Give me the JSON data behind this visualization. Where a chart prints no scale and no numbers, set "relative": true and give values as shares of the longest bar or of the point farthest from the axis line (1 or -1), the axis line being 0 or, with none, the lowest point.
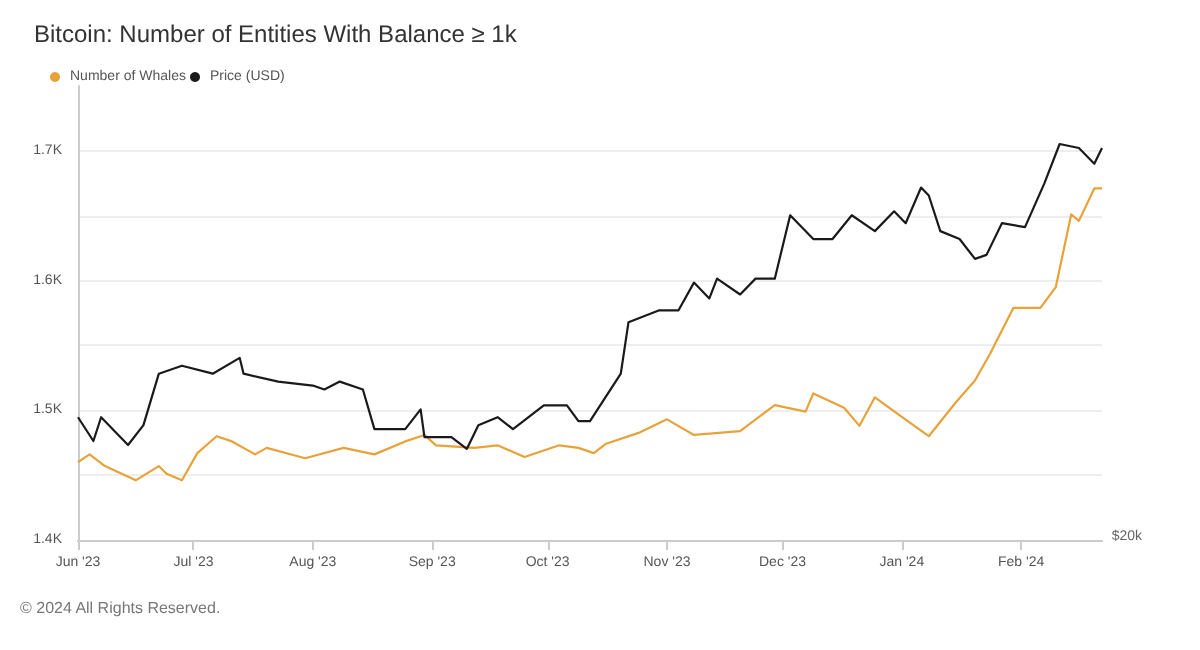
{
  "chart_data": [
    {
      "type": "line",
      "title": "Bitcoin: Number of Entities With Balance ≥ 1k",
      "annotations": [
        "© 2024 All Rights Reserved."
      ],
      "x": [
        "2023-06-01",
        "2023-06-04",
        "2023-06-08",
        "2023-06-16",
        "2023-06-22",
        "2023-06-24",
        "2023-06-28",
        "2023-07-02",
        "2023-07-07",
        "2023-07-11",
        "2023-07-17",
        "2023-07-20",
        "2023-07-30",
        "2023-08-09",
        "2023-08-17",
        "2023-08-25",
        "2023-08-30",
        "2023-09-02",
        "2023-09-12",
        "2023-09-18",
        "2023-09-25",
        "2023-10-04",
        "2023-10-09",
        "2023-10-13",
        "2023-10-16",
        "2023-10-25",
        "2023-11-01",
        "2023-11-08",
        "2023-11-20",
        "2023-11-29",
        "2023-12-07",
        "2023-12-09",
        "2023-12-17",
        "2023-12-21",
        "2023-12-25",
        "2024-01-01",
        "2024-01-08",
        "2024-01-15",
        "2024-01-20",
        "2024-01-24",
        "2024-01-30",
        "2024-02-06",
        "2024-02-10",
        "2024-02-14",
        "2024-02-16",
        "2024-02-20",
        "2024-02-22"
      ],
      "series": [
        {
          "name": "Number of Whales",
          "color": "#e8a23a",
          "values": [
            1460,
            1466,
            1457,
            1446,
            1457,
            1451,
            1446,
            1467,
            1480,
            1476,
            1466,
            1471,
            1463,
            1471,
            1466,
            1476,
            1481,
            1473,
            1471,
            1473,
            1464,
            1473,
            1471,
            1467,
            1474,
            1483,
            1493,
            1481,
            1484,
            1504,
            1499,
            1513,
            1502,
            1488,
            1510,
            1495,
            1480,
            1506,
            1523,
            1544,
            1579,
            1579,
            1595,
            1651,
            1646,
            1671,
            1671
          ]
        }
      ],
      "xlim": [
        "2023-06-01",
        "2024-02-22"
      ],
      "xticks": [
        {
          "value": "2023-06-01",
          "label": "Jun '23"
        },
        {
          "value": "2023-07-01",
          "label": "Jul '23"
        },
        {
          "value": "2023-08-01",
          "label": "Aug '23"
        },
        {
          "value": "2023-09-01",
          "label": "Sep '23"
        },
        {
          "value": "2023-10-01",
          "label": "Oct '23"
        },
        {
          "value": "2023-11-01",
          "label": "Nov '23"
        },
        {
          "value": "2023-12-01",
          "label": "Dec '23"
        },
        {
          "value": "2024-01-01",
          "label": "Jan '24"
        },
        {
          "value": "2024-02-01",
          "label": "Feb '24"
        }
      ],
      "ylim": [
        1400,
        1750
      ],
      "yticks": [
        {
          "value": 1400,
          "label": "1.4K"
        },
        {
          "value": 1450,
          "label": null
        },
        {
          "value": 1500,
          "label": "1.5K"
        },
        {
          "value": 1550,
          "label": null
        },
        {
          "value": 1600,
          "label": "1.6K"
        },
        {
          "value": 1650,
          "label": null
        },
        {
          "value": 1700,
          "label": "1.7K"
        }
      ],
      "grid": "y",
      "legend": "top left"
    },
    {
      "type": "line",
      "relative": true,
      "annotations": [
        "$20k"
      ],
      "x": [
        "2023-06-01",
        "2023-06-05",
        "2023-06-07",
        "2023-06-14",
        "2023-06-18",
        "2023-06-22",
        "2023-06-28",
        "2023-07-06",
        "2023-07-13",
        "2023-07-14",
        "2023-07-23",
        "2023-08-01",
        "2023-08-04",
        "2023-08-08",
        "2023-08-14",
        "2023-08-17",
        "2023-08-25",
        "2023-08-29",
        "2023-08-30",
        "2023-09-06",
        "2023-09-10",
        "2023-09-13",
        "2023-09-18",
        "2023-09-22",
        "2023-09-30",
        "2023-10-06",
        "2023-10-09",
        "2023-10-12",
        "2023-10-16",
        "2023-10-20",
        "2023-10-22",
        "2023-10-30",
        "2023-11-04",
        "2023-11-08",
        "2023-11-12",
        "2023-11-14",
        "2023-11-20",
        "2023-11-24",
        "2023-11-29",
        "2023-12-03",
        "2023-12-09",
        "2023-12-14",
        "2023-12-19",
        "2023-12-25",
        "2023-12-30",
        "2024-01-02",
        "2024-01-06",
        "2024-01-08",
        "2024-01-11",
        "2024-01-16",
        "2024-01-20",
        "2024-01-23",
        "2024-01-27",
        "2024-02-02",
        "2024-02-07",
        "2024-02-11",
        "2024-02-16",
        "2024-02-20",
        "2024-02-22"
      ],
      "series": [
        {
          "name": "Price (USD)",
          "color": "#1a1a1a",
          "values": [
            0.31,
            0.25,
            0.31,
            0.24,
            0.29,
            0.42,
            0.44,
            0.42,
            0.46,
            0.42,
            0.4,
            0.39,
            0.38,
            0.4,
            0.38,
            0.28,
            0.28,
            0.33,
            0.26,
            0.26,
            0.23,
            0.29,
            0.31,
            0.28,
            0.34,
            0.34,
            0.3,
            0.3,
            0.36,
            0.42,
            0.55,
            0.58,
            0.58,
            0.65,
            0.61,
            0.66,
            0.62,
            0.66,
            0.66,
            0.82,
            0.76,
            0.76,
            0.82,
            0.78,
            0.83,
            0.8,
            0.89,
            0.87,
            0.78,
            0.76,
            0.71,
            0.72,
            0.8,
            0.79,
            0.9,
            1.0,
            0.99,
            0.95,
            0.99
          ]
        }
      ],
      "xlim": [
        "2023-06-01",
        "2024-02-22"
      ],
      "legend": "top left"
    }
  ]
}
